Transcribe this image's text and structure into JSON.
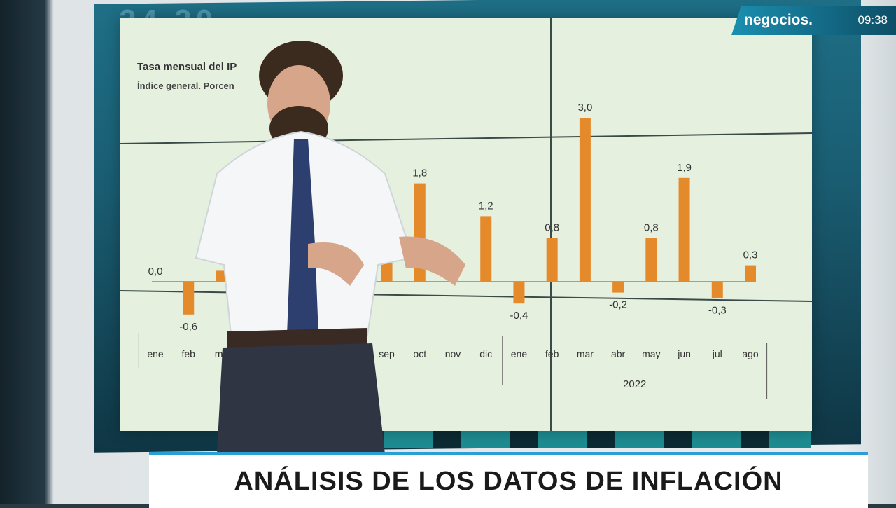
{
  "overlay": {
    "brand": "negocios.",
    "time": "09:38",
    "headline": "ANÁLISIS DE LOS DATOS DE INFLACIÓN"
  },
  "background": {
    "wall_numbers": "24 30"
  },
  "colors": {
    "bar": "#e58a2a",
    "chart_bg": "#e6f0df",
    "accent": "#2a9fd6"
  },
  "chart_data": {
    "type": "bar",
    "title": "Tasa mensual del IP",
    "subtitle": "Índice general. Porcen",
    "categories": [
      "ene",
      "feb",
      "ma",
      "",
      "",
      "",
      "",
      "sep",
      "oct",
      "nov",
      "dic",
      "ene",
      "feb",
      "mar",
      "abr",
      "may",
      "jun",
      "jul",
      "ago"
    ],
    "values": [
      0.0,
      -0.6,
      0.2,
      null,
      null,
      null,
      null,
      0.6,
      1.8,
      null,
      1.2,
      -0.4,
      0.8,
      3.0,
      -0.2,
      0.8,
      1.9,
      -0.3,
      0.3
    ],
    "labels": [
      "0,0",
      "-0,6",
      "",
      "",
      "",
      "",
      "",
      "",
      "1,8",
      "",
      "1,2",
      "-0,4",
      "0,8",
      "3,0",
      "-0,2",
      "0,8",
      "1,9",
      "-0,3",
      "0,3"
    ],
    "year_label": "2022",
    "ylim": [
      -0.8,
      3.3
    ]
  }
}
